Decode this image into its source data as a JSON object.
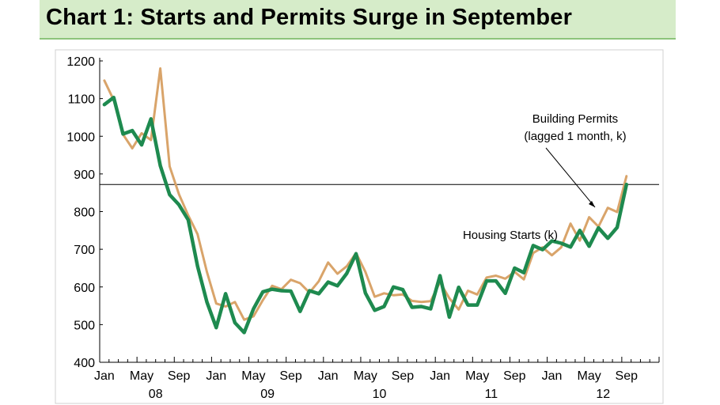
{
  "chart_title": "Chart 1: Starts and Permits Surge in September",
  "chart_data": {
    "type": "line",
    "title": "Chart 1: Starts and Permits Surge in September",
    "xlabel": "",
    "ylabel": "",
    "ylim": [
      400,
      1200
    ],
    "yticks": [
      "400",
      "500",
      "600",
      "700",
      "800",
      "900",
      "1000",
      "1100",
      "1200"
    ],
    "x_month_labels": [
      "Jan",
      "May",
      "Sep",
      "Jan",
      "May",
      "Sep",
      "Jan",
      "May",
      "Sep",
      "Jan",
      "May",
      "Sep",
      "Jan",
      "May",
      "Sep"
    ],
    "x_year_labels": [
      "08",
      "09",
      "10",
      "11",
      "12"
    ],
    "reference_line": 872,
    "grid": false,
    "x_start": "2008-01",
    "series": [
      {
        "name": "Housing Starts (k)",
        "color": "#1e8a4f",
        "values": [
          1084,
          1103,
          1006,
          1015,
          977,
          1046,
          922,
          845,
          818,
          778,
          655,
          560,
          492,
          582,
          505,
          479,
          542,
          587,
          594,
          590,
          589,
          535,
          590,
          582,
          613,
          603,
          636,
          688,
          584,
          538,
          548,
          600,
          593,
          546,
          548,
          542,
          630,
          520,
          599,
          552,
          552,
          616,
          616,
          583,
          650,
          638,
          710,
          699,
          722,
          716,
          706,
          750,
          708,
          757,
          729,
          758,
          872
        ]
      },
      {
        "name": "Building Permits (lagged 1 month, k)",
        "color": "#d9a46a",
        "values": [
          1148,
          1096,
          1005,
          968,
          1008,
          990,
          1180,
          920,
          846,
          790,
          740,
          640,
          556,
          548,
          560,
          513,
          522,
          565,
          603,
          594,
          619,
          610,
          585,
          615,
          665,
          635,
          655,
          690,
          640,
          574,
          583,
          578,
          580,
          563,
          560,
          562,
          613,
          570,
          540,
          590,
          580,
          625,
          630,
          622,
          640,
          620,
          690,
          705,
          684,
          705,
          768,
          723,
          785,
          760,
          810,
          799,
          894
        ]
      }
    ],
    "annotations": [
      "Building Permits",
      "(lagged 1 month, k)",
      "Housing Starts (k)"
    ]
  }
}
